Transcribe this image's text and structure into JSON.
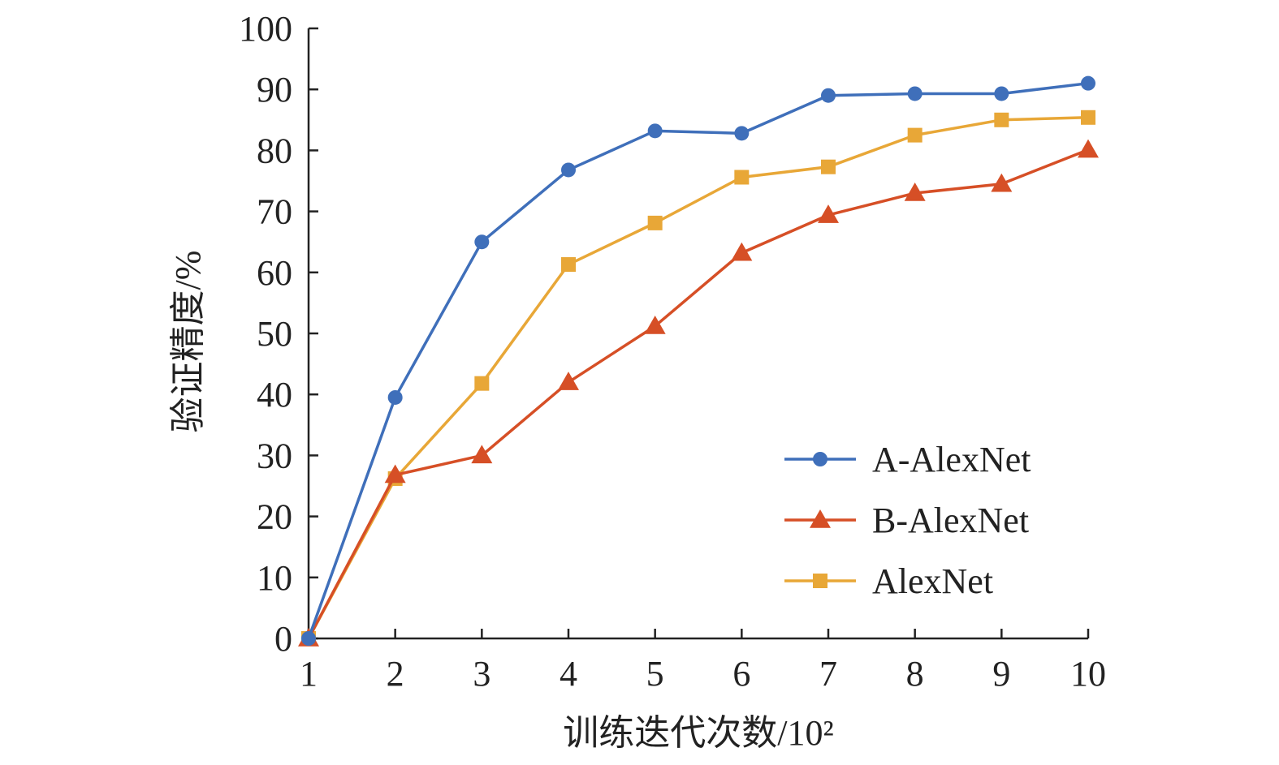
{
  "chart_data": {
    "type": "line",
    "title": "",
    "xlabel": "训练迭代次数/10²",
    "ylabel": "验证精度/%",
    "categories": [
      "1",
      "2",
      "3",
      "4",
      "5",
      "6",
      "7",
      "8",
      "9",
      "10"
    ],
    "x": [
      1,
      2,
      3,
      4,
      5,
      6,
      7,
      8,
      9,
      10
    ],
    "xlim": [
      1,
      10
    ],
    "ylim": [
      0,
      100
    ],
    "yticks": [
      "0",
      "10",
      "20",
      "30",
      "40",
      "50",
      "60",
      "70",
      "80",
      "90",
      "100"
    ],
    "grid": false,
    "legend_position": "bottom-right",
    "series": [
      {
        "name": "A-AlexNet",
        "color": "#3f6fba",
        "marker": "circle",
        "values": [
          0,
          39.5,
          65,
          76.8,
          83.2,
          82.8,
          89,
          89.3,
          89.3,
          91
        ]
      },
      {
        "name": "B-AlexNet",
        "color": "#d64f26",
        "marker": "triangle",
        "values": [
          0,
          26.8,
          30,
          42,
          51.2,
          63.2,
          69.4,
          73,
          74.5,
          80.1
        ]
      },
      {
        "name": "AlexNet",
        "color": "#e8a737",
        "marker": "square",
        "values": [
          0,
          26.2,
          41.8,
          61.3,
          68.1,
          75.6,
          77.3,
          82.5,
          85,
          85.4
        ]
      }
    ]
  }
}
